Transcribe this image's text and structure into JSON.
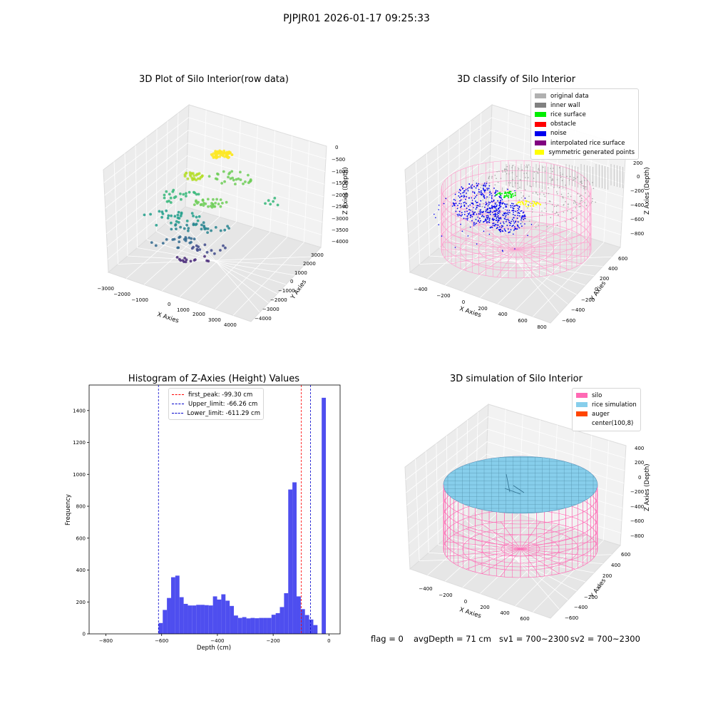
{
  "suptitle": "PJPJR01 2026-01-17 09:25:33",
  "panels": {
    "raw": {
      "title": "3D Plot of Silo Interior(row data)",
      "x_ticks": [
        "−3000",
        "−2000",
        "−1000",
        "0",
        "1000",
        "2000",
        "3000",
        "4000"
      ],
      "y_ticks": [
        "3000",
        "2000",
        "1000",
        "0",
        "−1000",
        "−2000",
        "−3000",
        "−4000"
      ],
      "z_ticks": [
        "0",
        "−500",
        "−1000",
        "−1500",
        "−2000",
        "−2500",
        "−3000",
        "−3500",
        "−4000"
      ],
      "x_label": "X Axies",
      "y_label": "Y Axies",
      "z_label": "Z Axies (Depth)"
    },
    "classify": {
      "title": "3D classify of Silo Interior",
      "x_ticks": [
        "−400",
        "−200",
        "0",
        "200",
        "400",
        "600",
        "800"
      ],
      "y_ticks": [
        "600",
        "400",
        "200",
        "0",
        "−200",
        "−400",
        "−600"
      ],
      "z_ticks": [
        "200",
        "0",
        "−200",
        "−400",
        "−600",
        "−800"
      ],
      "x_label": "X Axies",
      "y_label": "Y Axies",
      "z_label": "Z Axies (Depth)",
      "legend": [
        {
          "label": "original data",
          "color": "#b0b0b0"
        },
        {
          "label": "inner wall",
          "color": "#808080"
        },
        {
          "label": "rice surface",
          "color": "#00ee00"
        },
        {
          "label": "obstacle",
          "color": "#ff0000"
        },
        {
          "label": "noise",
          "color": "#0000ee"
        },
        {
          "label": "interpolated rice surface",
          "color": "#800080"
        },
        {
          "label": "symmetric generated points",
          "color": "#ffff00"
        }
      ]
    },
    "simulation": {
      "title": "3D simulation of Silo Interior",
      "x_ticks": [
        "−400",
        "−200",
        "0",
        "200",
        "400",
        "600"
      ],
      "y_ticks": [
        "600",
        "400",
        "200",
        "0",
        "−200",
        "−400",
        "−600"
      ],
      "z_ticks": [
        "400",
        "200",
        "0",
        "−200",
        "−400",
        "−600",
        "−800"
      ],
      "x_label": "X Axies",
      "y_label": "Y Axies",
      "z_label": "Z Axies (Depth)",
      "legend": [
        {
          "label": "silo",
          "color": "#ff69b4"
        },
        {
          "label": "rice simulation",
          "color": "#87ceeb"
        },
        {
          "label": "auger",
          "color": "#ff4500"
        },
        {
          "label": "center(100,8)",
          "color": ""
        }
      ]
    }
  },
  "footer": {
    "flag": "flag = 0",
    "avg_depth": "avgDepth = 71 cm",
    "sv1": "sv1 = 700~2300",
    "sv2": "sv2 = 700~2300"
  },
  "chart_data": [
    {
      "type": "bar",
      "title": "Histogram of Z-Axies (Height) Values",
      "xlabel": "Depth (cm)",
      "ylabel": "Frequency",
      "xlim": [
        -860,
        40
      ],
      "ylim": [
        0,
        1560
      ],
      "x_ticks": [
        -800,
        -600,
        -400,
        -200,
        0
      ],
      "x_tick_labels": [
        "−800",
        "−600",
        "−400",
        "−200",
        "0"
      ],
      "y_ticks": [
        0,
        200,
        400,
        600,
        800,
        1000,
        1200,
        1400
      ],
      "bar_color": "#4444ee",
      "bins": [
        {
          "x0": -611,
          "x1": -596,
          "value": 68
        },
        {
          "x0": -596,
          "x1": -581,
          "value": 150
        },
        {
          "x0": -581,
          "x1": -566,
          "value": 225
        },
        {
          "x0": -566,
          "x1": -551,
          "value": 355
        },
        {
          "x0": -551,
          "x1": -536,
          "value": 365
        },
        {
          "x0": -536,
          "x1": -521,
          "value": 230
        },
        {
          "x0": -521,
          "x1": -506,
          "value": 188
        },
        {
          "x0": -506,
          "x1": -491,
          "value": 178
        },
        {
          "x0": -491,
          "x1": -476,
          "value": 178
        },
        {
          "x0": -476,
          "x1": -461,
          "value": 182
        },
        {
          "x0": -461,
          "x1": -446,
          "value": 182
        },
        {
          "x0": -446,
          "x1": -431,
          "value": 180
        },
        {
          "x0": -431,
          "x1": -416,
          "value": 178
        },
        {
          "x0": -416,
          "x1": -401,
          "value": 235
        },
        {
          "x0": -401,
          "x1": -386,
          "value": 215
        },
        {
          "x0": -386,
          "x1": -371,
          "value": 248
        },
        {
          "x0": -371,
          "x1": -356,
          "value": 208
        },
        {
          "x0": -356,
          "x1": -341,
          "value": 175
        },
        {
          "x0": -341,
          "x1": -326,
          "value": 115
        },
        {
          "x0": -326,
          "x1": -311,
          "value": 100
        },
        {
          "x0": -311,
          "x1": -296,
          "value": 105
        },
        {
          "x0": -296,
          "x1": -281,
          "value": 97
        },
        {
          "x0": -281,
          "x1": -266,
          "value": 100
        },
        {
          "x0": -266,
          "x1": -251,
          "value": 98
        },
        {
          "x0": -251,
          "x1": -236,
          "value": 100
        },
        {
          "x0": -236,
          "x1": -221,
          "value": 100
        },
        {
          "x0": -221,
          "x1": -206,
          "value": 100
        },
        {
          "x0": -206,
          "x1": -191,
          "value": 120
        },
        {
          "x0": -191,
          "x1": -176,
          "value": 130
        },
        {
          "x0": -176,
          "x1": -161,
          "value": 168
        },
        {
          "x0": -161,
          "x1": -146,
          "value": 255
        },
        {
          "x0": -146,
          "x1": -131,
          "value": 905
        },
        {
          "x0": -131,
          "x1": -116,
          "value": 950
        },
        {
          "x0": -116,
          "x1": -101,
          "value": 235
        },
        {
          "x0": -101,
          "x1": -86,
          "value": 155
        },
        {
          "x0": -86,
          "x1": -71,
          "value": 118
        },
        {
          "x0": -71,
          "x1": -56,
          "value": 90
        },
        {
          "x0": -56,
          "x1": -41,
          "value": 55
        },
        {
          "x0": -41,
          "x1": -26,
          "value": 0
        },
        {
          "x0": -26,
          "x1": -11,
          "value": 1480
        }
      ],
      "vlines": [
        {
          "label": "first_peak: -99.30 cm",
          "x": -99.3,
          "color": "#ff0000"
        },
        {
          "label": "Upper_limit: -66.26 cm",
          "x": -66.26,
          "color": "#0000cc"
        },
        {
          "label": "Lower_limit: -611.29 cm",
          "x": -611.29,
          "color": "#0000cc"
        }
      ]
    }
  ]
}
